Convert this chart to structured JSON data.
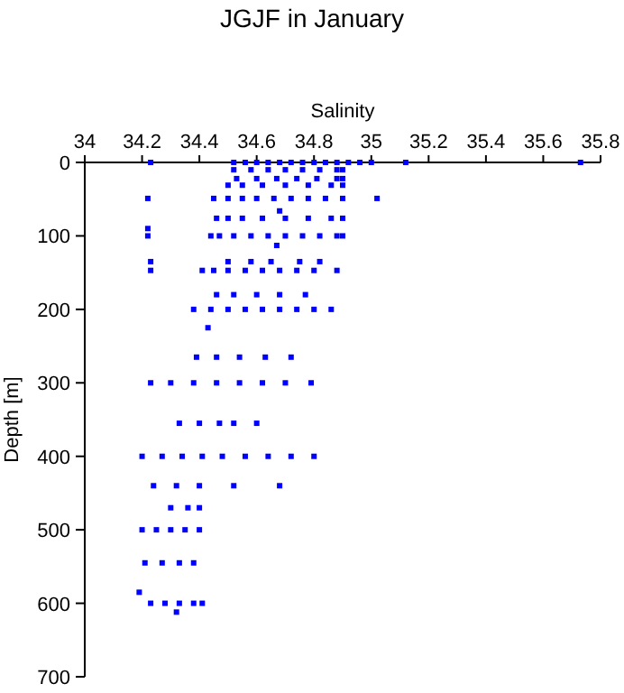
{
  "chart_data": {
    "type": "scatter",
    "title": "JGJF in January",
    "xlabel": "Salinity",
    "ylabel": "Depth [m]",
    "xlim": [
      34,
      35.8
    ],
    "xticks": [
      34,
      34.2,
      34.4,
      34.6,
      34.8,
      35,
      35.2,
      35.4,
      35.6,
      35.8
    ],
    "ylim": [
      700,
      0
    ],
    "yticks": [
      0,
      100,
      200,
      300,
      400,
      500,
      600,
      700
    ],
    "grid": false,
    "marker": "square",
    "series": [
      {
        "color": "#0000ff",
        "x": [
          34.23,
          34.52,
          34.56,
          34.6,
          34.64,
          34.68,
          34.72,
          34.76,
          34.8,
          34.84,
          34.88,
          34.92,
          34.96,
          35.0,
          35.12,
          35.73,
          34.52,
          34.58,
          34.64,
          34.7,
          34.76,
          34.82,
          34.88,
          34.9,
          34.53,
          34.6,
          34.67,
          34.74,
          34.81,
          34.88,
          34.9,
          34.5,
          34.55,
          34.62,
          34.7,
          34.78,
          34.86,
          34.9,
          34.22,
          34.45,
          34.5,
          34.55,
          34.6,
          34.66,
          34.72,
          34.78,
          34.84,
          34.9,
          35.02,
          34.68,
          34.46,
          34.5,
          34.55,
          34.62,
          34.7,
          34.78,
          34.86,
          34.9,
          34.22,
          34.22,
          34.44,
          34.47,
          34.52,
          34.58,
          34.64,
          34.7,
          34.76,
          34.82,
          34.88,
          34.9,
          34.67,
          34.23,
          34.5,
          34.58,
          34.65,
          34.75,
          34.82,
          34.23,
          34.41,
          34.45,
          34.5,
          34.56,
          34.62,
          34.68,
          34.74,
          34.8,
          34.88,
          34.46,
          34.52,
          34.6,
          34.68,
          34.77,
          34.38,
          34.44,
          34.5,
          34.56,
          34.62,
          34.68,
          34.74,
          34.8,
          34.86,
          34.43,
          34.39,
          34.46,
          34.54,
          34.63,
          34.72,
          34.23,
          34.3,
          34.38,
          34.46,
          34.54,
          34.62,
          34.7,
          34.79,
          34.33,
          34.4,
          34.47,
          34.52,
          34.6,
          34.2,
          34.27,
          34.34,
          34.41,
          34.48,
          34.56,
          34.64,
          34.72,
          34.8,
          34.24,
          34.32,
          34.4,
          34.52,
          34.68,
          34.3,
          34.36,
          34.4,
          34.2,
          34.25,
          34.3,
          34.35,
          34.4,
          34.21,
          34.27,
          34.33,
          34.38,
          34.19,
          34.23,
          34.28,
          34.33,
          34.38,
          34.41,
          34.32
        ],
        "values": [
          0,
          0,
          0,
          0,
          0,
          0,
          0,
          0,
          0,
          0,
          0,
          0,
          0,
          0,
          0,
          0,
          10,
          10,
          10,
          10,
          10,
          10,
          10,
          10,
          22,
          22,
          22,
          22,
          22,
          22,
          22,
          31,
          31,
          31,
          31,
          31,
          31,
          31,
          49,
          49,
          49,
          49,
          49,
          49,
          49,
          49,
          49,
          49,
          49,
          66,
          76,
          76,
          76,
          76,
          76,
          76,
          76,
          76,
          90,
          100,
          100,
          100,
          100,
          100,
          100,
          100,
          100,
          100,
          100,
          100,
          113,
          135,
          135,
          135,
          135,
          135,
          135,
          147,
          147,
          147,
          147,
          147,
          147,
          147,
          147,
          147,
          147,
          180,
          180,
          180,
          180,
          180,
          200,
          200,
          200,
          200,
          200,
          200,
          200,
          200,
          200,
          225,
          265,
          265,
          265,
          265,
          265,
          300,
          300,
          300,
          300,
          300,
          300,
          300,
          300,
          355,
          355,
          355,
          355,
          355,
          400,
          400,
          400,
          400,
          400,
          400,
          400,
          400,
          400,
          440,
          440,
          440,
          440,
          440,
          470,
          470,
          470,
          500,
          500,
          500,
          500,
          500,
          545,
          545,
          545,
          545,
          585,
          600,
          600,
          600,
          600,
          600,
          612
        ]
      }
    ]
  }
}
